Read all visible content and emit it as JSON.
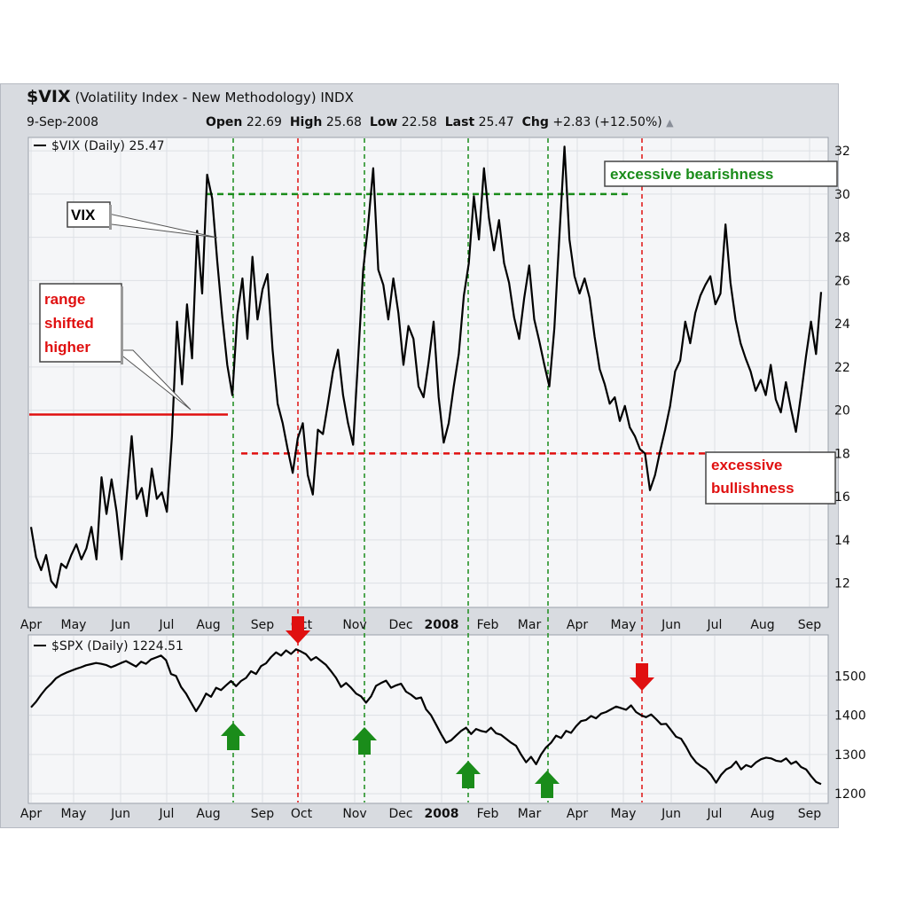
{
  "header": {
    "symbol": "$VIX",
    "name": "(Volatility Index - New Methodology)",
    "exchange": "INDX",
    "date": "9-Sep-2008",
    "open_label": "Open",
    "open": "22.69",
    "high_label": "High",
    "high": "25.68",
    "low_label": "Low",
    "low": "22.58",
    "last_label": "Last",
    "last": "25.47",
    "chg_label": "Chg",
    "chg": "+2.83 (+12.50%)"
  },
  "colors": {
    "green": "#1a8c1a",
    "red": "#e01010",
    "line": "#000000"
  },
  "chart_data": [
    {
      "type": "line",
      "legend": "$VIX (Daily) 25.47",
      "x_ticks": [
        "Apr",
        "May",
        "Jun",
        "Jul",
        "Aug",
        "Sep",
        "Oct",
        "Nov",
        "Dec",
        "2008",
        "Feb",
        "Mar",
        "Apr",
        "May",
        "Jun",
        "Jul",
        "Aug",
        "Sep"
      ],
      "y_ticks": [
        12,
        14,
        16,
        18,
        20,
        22,
        24,
        26,
        28,
        30,
        32
      ],
      "ylim": [
        11,
        32.5
      ],
      "series": [
        {
          "values": [
            14.6,
            13.2,
            12.6,
            13.3,
            12.1,
            11.8,
            12.9,
            12.7,
            13.3,
            13.8,
            13.1,
            13.6,
            14.6,
            13.1,
            16.9,
            15.2,
            16.8,
            15.3,
            13.1,
            16.0,
            18.8,
            15.9,
            16.4,
            15.1,
            17.3,
            15.9,
            16.2,
            15.3,
            18.8,
            24.1,
            21.2,
            24.9,
            22.4,
            28.3,
            25.4,
            30.9,
            29.8,
            26.9,
            24.3,
            22.1,
            20.7,
            24.4,
            26.1,
            23.3,
            27.1,
            24.2,
            25.6,
            26.3,
            22.8,
            20.3,
            19.4,
            18.2,
            17.1,
            18.7,
            19.4,
            17.0,
            16.1,
            19.1,
            18.9,
            20.3,
            21.8,
            22.8,
            20.7,
            19.4,
            18.4,
            22.4,
            26.5,
            28.6,
            31.2,
            26.5,
            25.8,
            24.2,
            26.1,
            24.5,
            22.1,
            23.9,
            23.3,
            21.1,
            20.6,
            22.2,
            24.1,
            20.6,
            18.5,
            19.4,
            21.1,
            22.6,
            25.3,
            26.8,
            29.9,
            27.9,
            31.2,
            28.9,
            27.4,
            28.8,
            26.8,
            25.9,
            24.3,
            23.3,
            25.2,
            26.7,
            24.2,
            23.2,
            22.1,
            21.1,
            23.8,
            28.1,
            32.2,
            27.9,
            26.2,
            25.4,
            26.1,
            25.2,
            23.4,
            21.9,
            21.2,
            20.3,
            20.6,
            19.5,
            20.2,
            19.2,
            18.8,
            18.2,
            18.0,
            16.3,
            17.0,
            18.1,
            19.1,
            20.2,
            21.8,
            22.3,
            24.1,
            23.1,
            24.5,
            25.3,
            25.8,
            26.2,
            24.9,
            25.4,
            28.6,
            25.9,
            24.2,
            23.1,
            22.4,
            21.8,
            20.9,
            21.4,
            20.7,
            22.1,
            20.5,
            19.9,
            21.3,
            20.1,
            19.0,
            20.7,
            22.5,
            24.1,
            22.6,
            25.47
          ]
        }
      ]
    },
    {
      "type": "line",
      "legend": "$SPX (Daily) 1224.51",
      "x_ticks": [
        "Apr",
        "May",
        "Jun",
        "Jul",
        "Aug",
        "Sep",
        "Oct",
        "Nov",
        "Dec",
        "2008",
        "Feb",
        "Mar",
        "Apr",
        "May",
        "Jun",
        "Jul",
        "Aug",
        "Sep"
      ],
      "y_ticks": [
        1200,
        1300,
        1400,
        1500
      ],
      "ylim": [
        1180,
        1600
      ],
      "series": [
        {
          "values": [
            1420,
            1434,
            1452,
            1468,
            1480,
            1494,
            1502,
            1508,
            1513,
            1518,
            1522,
            1527,
            1530,
            1533,
            1531,
            1528,
            1522,
            1527,
            1533,
            1538,
            1531,
            1524,
            1536,
            1531,
            1542,
            1547,
            1552,
            1540,
            1505,
            1500,
            1472,
            1455,
            1432,
            1410,
            1430,
            1455,
            1447,
            1470,
            1464,
            1476,
            1487,
            1474,
            1487,
            1495,
            1512,
            1505,
            1525,
            1532,
            1548,
            1560,
            1552,
            1565,
            1556,
            1568,
            1562,
            1555,
            1540,
            1548,
            1538,
            1528,
            1512,
            1495,
            1472,
            1482,
            1470,
            1455,
            1448,
            1432,
            1448,
            1475,
            1482,
            1488,
            1470,
            1476,
            1480,
            1460,
            1452,
            1442,
            1445,
            1415,
            1400,
            1376,
            1352,
            1330,
            1336,
            1348,
            1360,
            1368,
            1352,
            1365,
            1360,
            1357,
            1368,
            1354,
            1350,
            1340,
            1330,
            1322,
            1300,
            1280,
            1294,
            1275,
            1300,
            1318,
            1330,
            1348,
            1342,
            1360,
            1355,
            1372,
            1385,
            1388,
            1398,
            1392,
            1404,
            1408,
            1415,
            1422,
            1418,
            1414,
            1425,
            1408,
            1400,
            1395,
            1402,
            1390,
            1377,
            1378,
            1362,
            1345,
            1340,
            1320,
            1296,
            1280,
            1270,
            1262,
            1248,
            1228,
            1248,
            1262,
            1268,
            1282,
            1262,
            1273,
            1268,
            1280,
            1288,
            1292,
            1290,
            1284,
            1282,
            1290,
            1276,
            1282,
            1268,
            1262,
            1245,
            1230,
            1224.51
          ]
        }
      ]
    }
  ],
  "annotations": {
    "vix_callout": "VIX",
    "range_line1": "range",
    "range_line2": "shifted",
    "range_line3": "higher",
    "bearish": "excessive bearishness",
    "bullish_line1": "excessive",
    "bullish_line2": "bullishness"
  }
}
